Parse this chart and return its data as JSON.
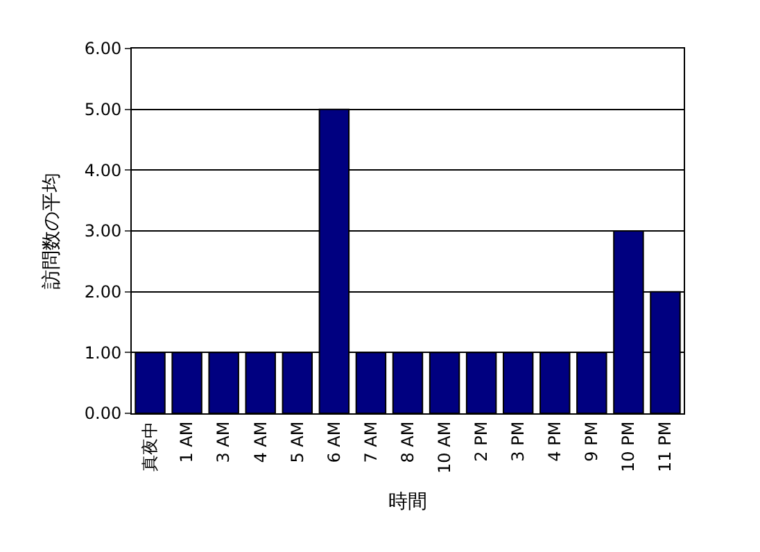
{
  "chart_data": {
    "type": "bar",
    "xlabel": "時間",
    "ylabel": "訪問数の平均",
    "categories": [
      "真夜中",
      "1 AM",
      "3 AM",
      "4 AM",
      "5 AM",
      "6 AM",
      "7 AM",
      "8 AM",
      "10 AM",
      "2 PM",
      "3 PM",
      "4 PM",
      "9 PM",
      "10 PM",
      "11 PM"
    ],
    "values": [
      1,
      1,
      1,
      1,
      1,
      5,
      1,
      1,
      1,
      1,
      1,
      1,
      1,
      3,
      2
    ],
    "color": "#000080",
    "ylim": [
      0,
      6
    ],
    "yticks": [
      {
        "value": 0,
        "label": "0.00"
      },
      {
        "value": 1,
        "label": "1.00"
      },
      {
        "value": 2,
        "label": "2.00"
      },
      {
        "value": 3,
        "label": "3.00"
      },
      {
        "value": 4,
        "label": "4.00"
      },
      {
        "value": 5,
        "label": "5.00"
      },
      {
        "value": 6,
        "label": "6.00"
      }
    ],
    "grid": "y",
    "legend": false
  }
}
